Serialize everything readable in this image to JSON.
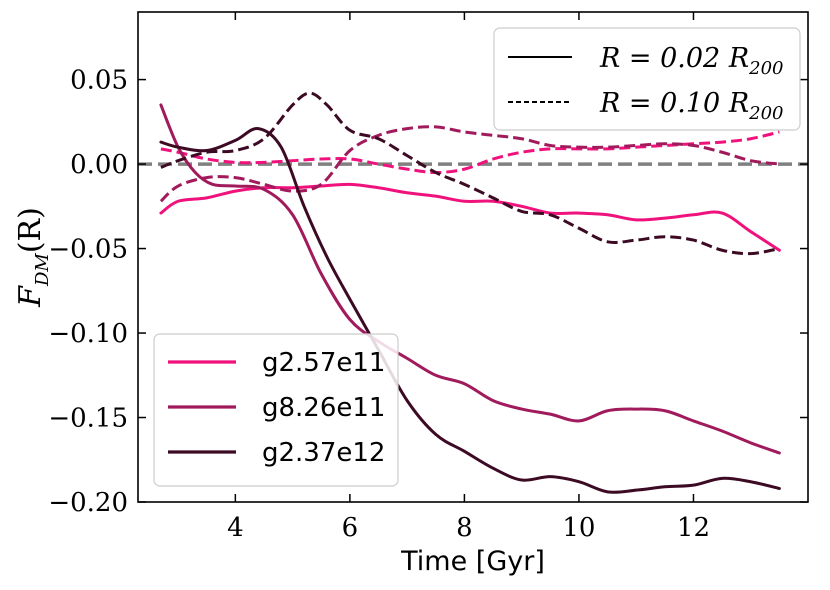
{
  "chart_data": {
    "type": "line",
    "title": "",
    "xlabel": "Time [Gyr]",
    "ylabel_main": "F",
    "ylabel_sub": "DM",
    "ylabel_arg": "(R)",
    "xlim": [
      2.3,
      14.0
    ],
    "ylim": [
      -0.2,
      0.09
    ],
    "xticks": [
      4,
      6,
      8,
      10,
      12
    ],
    "xtick_labels": [
      "4",
      "6",
      "8",
      "10",
      "12"
    ],
    "yticks": [
      0.05,
      0.0,
      -0.05,
      -0.1,
      -0.15,
      -0.2
    ],
    "ytick_labels": [
      "0.05",
      "0.00",
      "−0.05",
      "−0.10",
      "−0.15",
      "−0.20"
    ],
    "reference_line": {
      "y": 0.0,
      "color": "#808080",
      "style": "dashed"
    },
    "legend_style": {
      "placement": "top-right",
      "entries": [
        {
          "label_main": "R = 0.02 R",
          "label_sub": "200",
          "linestyle": "solid"
        },
        {
          "label_main": "R = 0.10 R",
          "label_sub": "200",
          "linestyle": "dashed"
        }
      ]
    },
    "legend_series": {
      "placement": "bottom-left",
      "entries": [
        "g2.57e11",
        "g8.26e11",
        "g2.37e12"
      ]
    },
    "series": [
      {
        "name": "g2.57e11",
        "color": "#f0127c",
        "linestyle": "solid",
        "x": [
          2.7,
          3.0,
          3.5,
          4.0,
          4.5,
          5.0,
          5.5,
          6.0,
          6.5,
          7.0,
          7.5,
          8.0,
          8.5,
          9.0,
          9.5,
          10.0,
          10.5,
          11.0,
          11.5,
          12.0,
          12.5,
          13.0,
          13.5
        ],
        "y": [
          -0.029,
          -0.022,
          -0.02,
          -0.016,
          -0.014,
          -0.014,
          -0.013,
          -0.012,
          -0.014,
          -0.017,
          -0.019,
          -0.022,
          -0.022,
          -0.025,
          -0.029,
          -0.029,
          -0.03,
          -0.033,
          -0.032,
          -0.03,
          -0.029,
          -0.04,
          -0.051
        ]
      },
      {
        "name": "g2.57e11",
        "color": "#f0127c",
        "linestyle": "dashed",
        "x": [
          2.7,
          3.0,
          3.5,
          4.0,
          4.5,
          5.0,
          5.5,
          6.0,
          6.5,
          7.0,
          7.5,
          8.0,
          8.5,
          9.0,
          9.5,
          10.0,
          10.5,
          11.0,
          11.5,
          12.0,
          12.5,
          13.0,
          13.5
        ],
        "y": [
          0.009,
          0.007,
          0.003,
          0.001,
          0.001,
          0.002,
          0.003,
          0.003,
          0.0,
          -0.003,
          -0.005,
          -0.003,
          0.003,
          0.007,
          0.009,
          0.009,
          0.009,
          0.01,
          0.011,
          0.012,
          0.013,
          0.015,
          0.019
        ]
      },
      {
        "name": "g8.26e11",
        "color": "#a01a5c",
        "linestyle": "solid",
        "x": [
          2.7,
          3.0,
          3.3,
          3.6,
          4.0,
          4.5,
          5.0,
          5.5,
          6.0,
          6.5,
          7.0,
          7.5,
          8.0,
          8.5,
          9.0,
          9.5,
          10.0,
          10.5,
          11.0,
          11.5,
          12.0,
          12.5,
          13.0,
          13.5
        ],
        "y": [
          0.035,
          0.01,
          -0.005,
          -0.012,
          -0.013,
          -0.015,
          -0.03,
          -0.065,
          -0.092,
          -0.105,
          -0.115,
          -0.125,
          -0.13,
          -0.14,
          -0.145,
          -0.148,
          -0.152,
          -0.146,
          -0.145,
          -0.146,
          -0.152,
          -0.158,
          -0.165,
          -0.171
        ]
      },
      {
        "name": "g8.26e11",
        "color": "#a01a5c",
        "linestyle": "dashed",
        "x": [
          2.7,
          3.0,
          3.5,
          4.0,
          4.5,
          5.0,
          5.5,
          6.0,
          6.5,
          7.0,
          7.5,
          8.0,
          8.5,
          9.0,
          9.5,
          10.0,
          10.5,
          11.0,
          11.5,
          12.0,
          12.5,
          13.0,
          13.5
        ],
        "y": [
          -0.022,
          -0.013,
          -0.008,
          -0.008,
          -0.012,
          -0.016,
          -0.012,
          0.008,
          0.017,
          0.021,
          0.022,
          0.019,
          0.017,
          0.015,
          0.011,
          0.01,
          0.01,
          0.011,
          0.012,
          0.011,
          0.007,
          0.002,
          0.0
        ]
      },
      {
        "name": "g2.37e12",
        "color": "#3d0a24",
        "linestyle": "solid",
        "x": [
          2.7,
          3.0,
          3.5,
          4.0,
          4.4,
          4.8,
          5.2,
          5.6,
          6.0,
          6.5,
          7.0,
          7.5,
          8.0,
          8.5,
          9.0,
          9.5,
          10.0,
          10.5,
          11.0,
          11.5,
          12.0,
          12.5,
          13.0,
          13.5
        ],
        "y": [
          0.013,
          0.01,
          0.008,
          0.014,
          0.021,
          0.01,
          -0.025,
          -0.055,
          -0.08,
          -0.11,
          -0.14,
          -0.16,
          -0.17,
          -0.18,
          -0.187,
          -0.185,
          -0.188,
          -0.194,
          -0.193,
          -0.191,
          -0.19,
          -0.186,
          -0.188,
          -0.192
        ]
      },
      {
        "name": "g2.37e12",
        "color": "#3d0a24",
        "linestyle": "dashed",
        "x": [
          2.7,
          3.0,
          3.5,
          4.0,
          4.5,
          5.0,
          5.3,
          5.6,
          6.0,
          6.5,
          7.0,
          7.5,
          8.0,
          8.5,
          9.0,
          9.5,
          10.0,
          10.5,
          11.0,
          11.5,
          12.0,
          12.5,
          13.0,
          13.5
        ],
        "y": [
          -0.002,
          0.002,
          0.007,
          0.008,
          0.015,
          0.035,
          0.042,
          0.035,
          0.02,
          0.015,
          0.005,
          -0.005,
          -0.012,
          -0.02,
          -0.028,
          -0.03,
          -0.038,
          -0.046,
          -0.045,
          -0.043,
          -0.045,
          -0.051,
          -0.053,
          -0.05
        ]
      }
    ]
  }
}
